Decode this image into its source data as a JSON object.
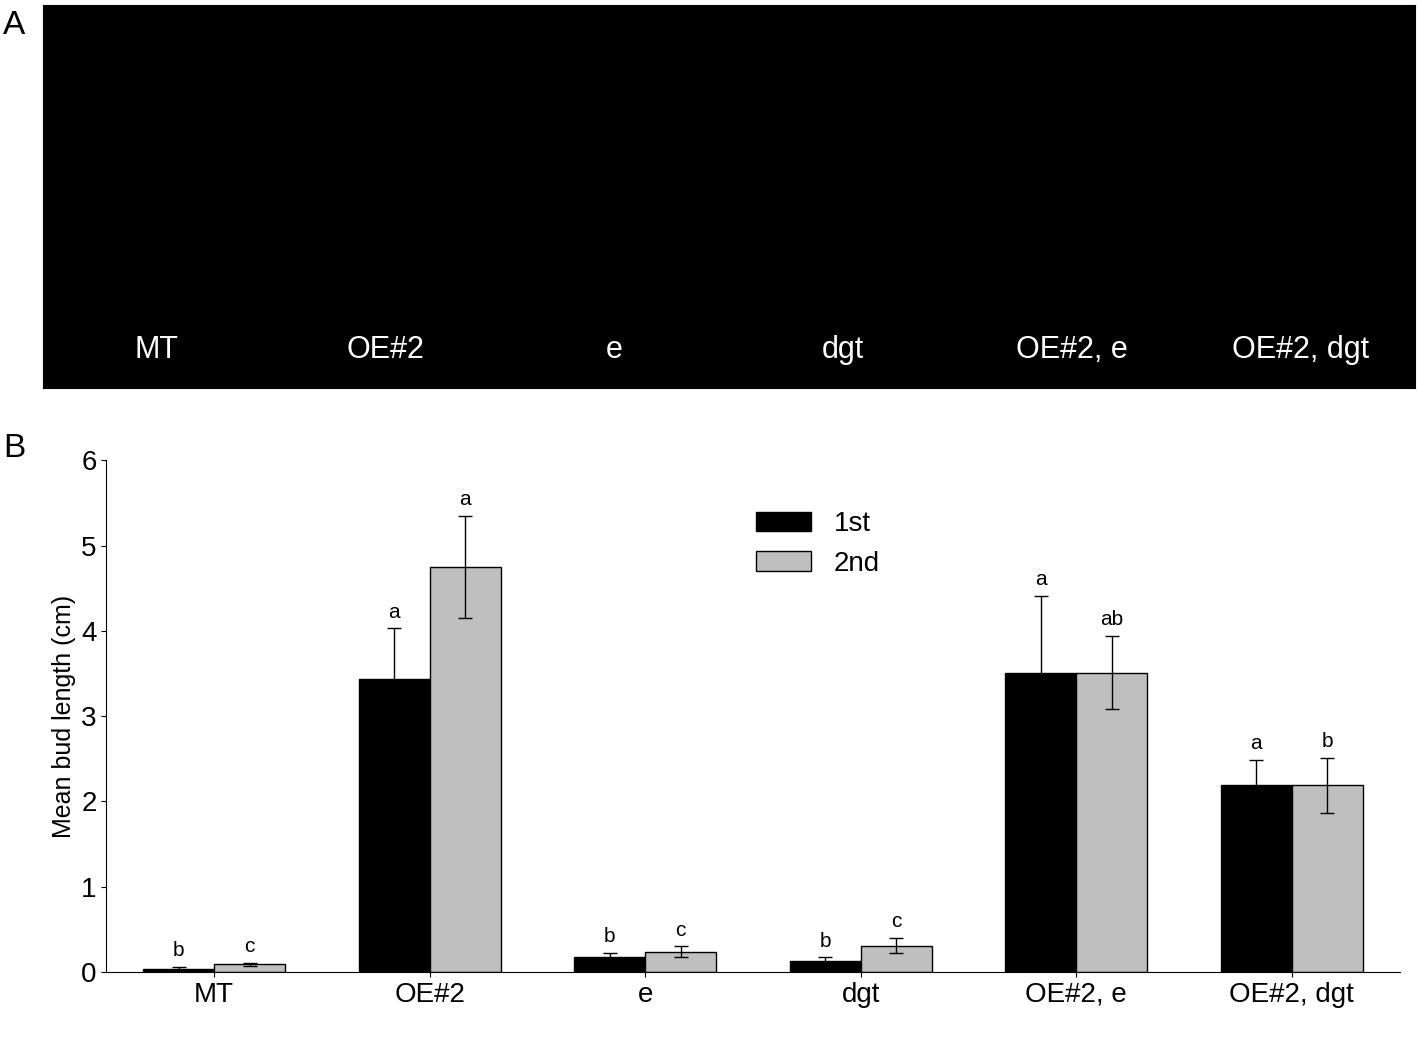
{
  "panel_labels": [
    "A",
    "B"
  ],
  "photo_panel": {
    "captions": [
      "MT",
      "OE#2",
      "e",
      "dgt",
      "OE#2, e",
      "OE#2, dgt"
    ]
  },
  "chart_data": {
    "type": "bar",
    "y_label": "Mean bud length (cm)",
    "categories": [
      "MT",
      "OE#2",
      "e",
      "dgt",
      "OE#2, e",
      "OE#2, dgt"
    ],
    "series": [
      {
        "name": "1st",
        "color": "#000000",
        "values": [
          0.04,
          3.44,
          0.18,
          0.13,
          3.51,
          2.19
        ],
        "errors": [
          0.02,
          0.59,
          0.04,
          0.04,
          0.9,
          0.3
        ],
        "letters": [
          "b",
          "a",
          "b",
          "b",
          "a",
          "a"
        ]
      },
      {
        "name": "2nd",
        "color": "#bfbfbf",
        "values": [
          0.09,
          4.75,
          0.24,
          0.31,
          3.51,
          2.19
        ],
        "errors": [
          0.02,
          0.6,
          0.06,
          0.09,
          0.43,
          0.32
        ],
        "letters": [
          "c",
          "a",
          "c",
          "c",
          "ab",
          "b"
        ]
      }
    ],
    "ylim": [
      0,
      6
    ],
    "yticks": [
      0,
      1,
      2,
      3,
      4,
      5,
      6
    ],
    "legend": "upper center",
    "grid": false
  }
}
